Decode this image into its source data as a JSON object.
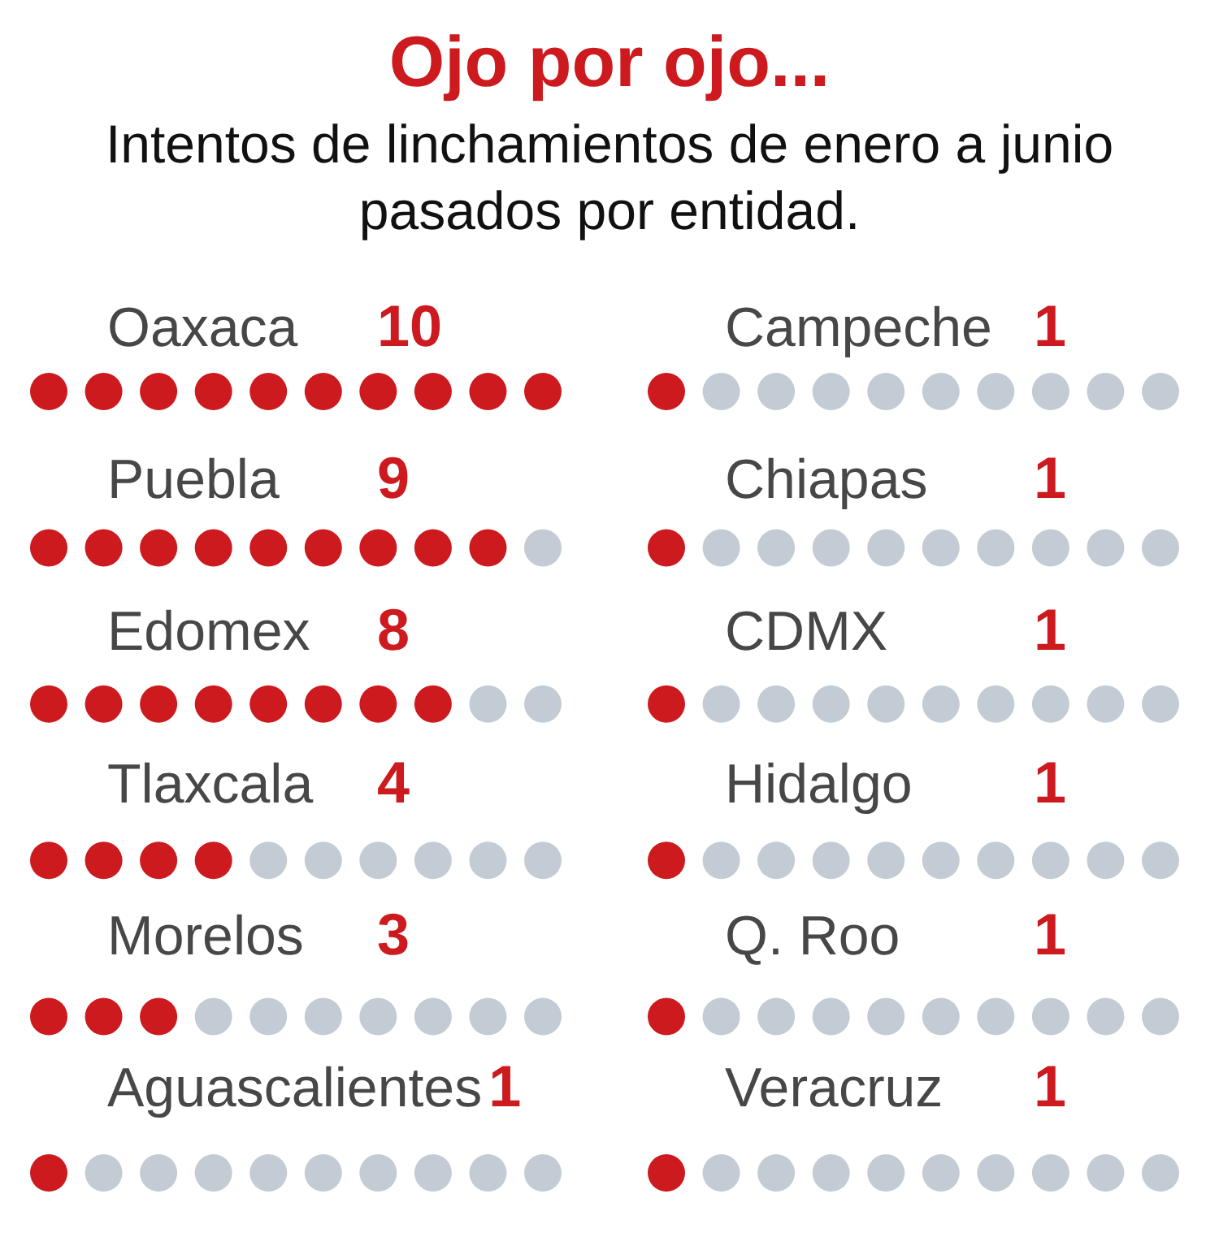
{
  "chart_data": {
    "type": "other",
    "title": "Ojo por ojo...",
    "subtitle": "Intentos de linchamientos de enero a junio pasados por entidad.",
    "categories": [
      "Oaxaca",
      "Puebla",
      "Edomex",
      "Tlaxcala",
      "Morelos",
      "Aguascalientes",
      "Campeche",
      "Chiapas",
      "CDMX",
      "Hidalgo",
      "Q. Roo",
      "Veracruz"
    ],
    "values": [
      10,
      9,
      8,
      4,
      3,
      1,
      1,
      1,
      1,
      1,
      1,
      1
    ],
    "color": "#cc1a1e",
    "data_labels": true
  }
}
